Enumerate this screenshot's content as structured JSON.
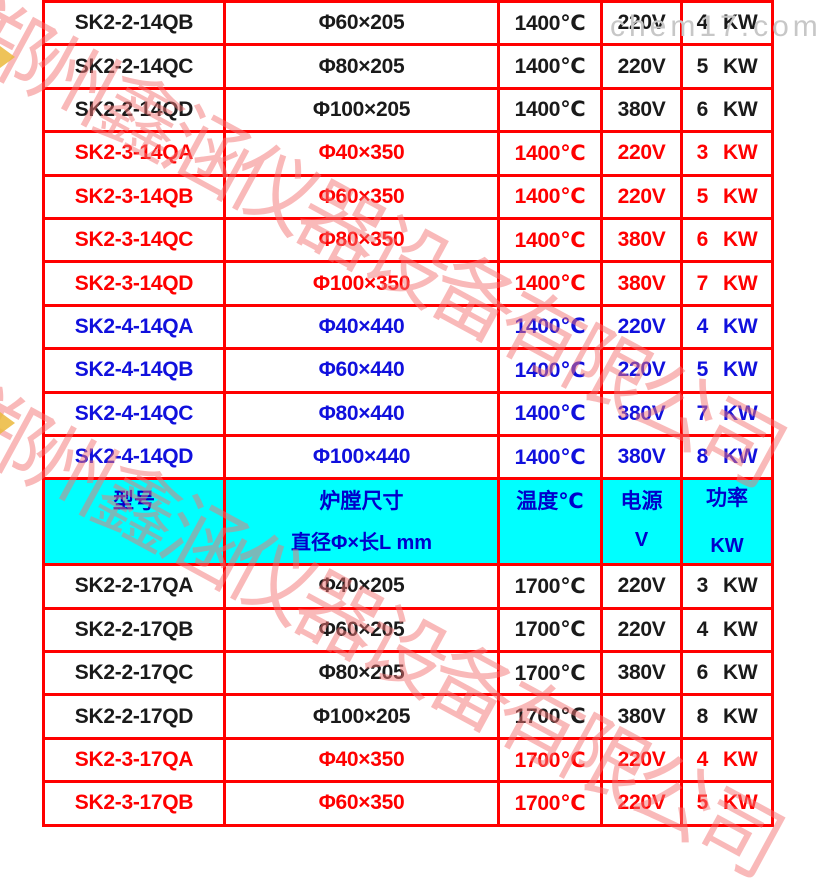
{
  "watermark": {
    "company_text": "郑州鑫涵仪器设备有限公司",
    "site_text": "chem17.com",
    "company_color": "#f47474",
    "site_color": "#c7c7c7"
  },
  "table": {
    "border_color": "#ff0000",
    "header": {
      "background": "#00ffff",
      "text_color": "#0000cc",
      "cols": [
        {
          "line1": "型号",
          "line2": ""
        },
        {
          "line1": "炉膛尺寸",
          "line2": "直径Φ×长L mm"
        },
        {
          "line1": "温度℃",
          "line2": ""
        },
        {
          "line1": "电源",
          "line2": "V"
        },
        {
          "line1": "功率",
          "line2": "KW"
        }
      ]
    },
    "text_colors": {
      "black": "#1a1a1a",
      "red": "#ff0000",
      "blue": "#1010dd"
    },
    "rows_top": [
      {
        "model": "SK2-2-14QB",
        "size": "Φ60×205",
        "temp": "1400℃",
        "volt": "220V",
        "power": "4",
        "unit": "KW",
        "color": "black"
      },
      {
        "model": "SK2-2-14QC",
        "size": "Φ80×205",
        "temp": "1400℃",
        "volt": "220V",
        "power": "5",
        "unit": "KW",
        "color": "black"
      },
      {
        "model": "SK2-2-14QD",
        "size": "Φ100×205",
        "temp": "1400℃",
        "volt": "380V",
        "power": "6",
        "unit": "KW",
        "color": "black"
      },
      {
        "model": "SK2-3-14QA",
        "size": "Φ40×350",
        "temp": "1400℃",
        "volt": "220V",
        "power": "3",
        "unit": "KW",
        "color": "red"
      },
      {
        "model": "SK2-3-14QB",
        "size": "Φ60×350",
        "temp": "1400℃",
        "volt": "220V",
        "power": "5",
        "unit": "KW",
        "color": "red"
      },
      {
        "model": "SK2-3-14QC",
        "size": "Φ80×350",
        "temp": "1400℃",
        "volt": "380V",
        "power": "6",
        "unit": "KW",
        "color": "red"
      },
      {
        "model": "SK2-3-14QD",
        "size": "Φ100×350",
        "temp": "1400℃",
        "volt": "380V",
        "power": "7",
        "unit": "KW",
        "color": "red"
      },
      {
        "model": "SK2-4-14QA",
        "size": "Φ40×440",
        "temp": "1400℃",
        "volt": "220V",
        "power": "4",
        "unit": "KW",
        "color": "blue"
      },
      {
        "model": "SK2-4-14QB",
        "size": "Φ60×440",
        "temp": "1400℃",
        "volt": "220V",
        "power": "5",
        "unit": "KW",
        "color": "blue"
      },
      {
        "model": "SK2-4-14QC",
        "size": "Φ80×440",
        "temp": "1400℃",
        "volt": "380V",
        "power": "7",
        "unit": "KW",
        "color": "blue"
      },
      {
        "model": "SK2-4-14QD",
        "size": "Φ100×440",
        "temp": "1400℃",
        "volt": "380V",
        "power": "8",
        "unit": "KW",
        "color": "blue"
      }
    ],
    "rows_bottom": [
      {
        "model": "SK2-2-17QA",
        "size": "Φ40×205",
        "temp": "1700℃",
        "volt": "220V",
        "power": "3",
        "unit": "KW",
        "color": "black"
      },
      {
        "model": "SK2-2-17QB",
        "size": "Φ60×205",
        "temp": "1700℃",
        "volt": "220V",
        "power": "4",
        "unit": "KW",
        "color": "black"
      },
      {
        "model": "SK2-2-17QC",
        "size": "Φ80×205",
        "temp": "1700℃",
        "volt": "380V",
        "power": "6",
        "unit": "KW",
        "color": "black"
      },
      {
        "model": "SK2-2-17QD",
        "size": "Φ100×205",
        "temp": "1700℃",
        "volt": "380V",
        "power": "8",
        "unit": "KW",
        "color": "black"
      },
      {
        "model": "SK2-3-17QA",
        "size": "Φ40×350",
        "temp": "1700℃",
        "volt": "220V",
        "power": "4",
        "unit": "KW",
        "color": "red"
      },
      {
        "model": "SK2-3-17QB",
        "size": "Φ60×350",
        "temp": "1700℃",
        "volt": "220V",
        "power": "5",
        "unit": "KW",
        "color": "red"
      }
    ]
  }
}
